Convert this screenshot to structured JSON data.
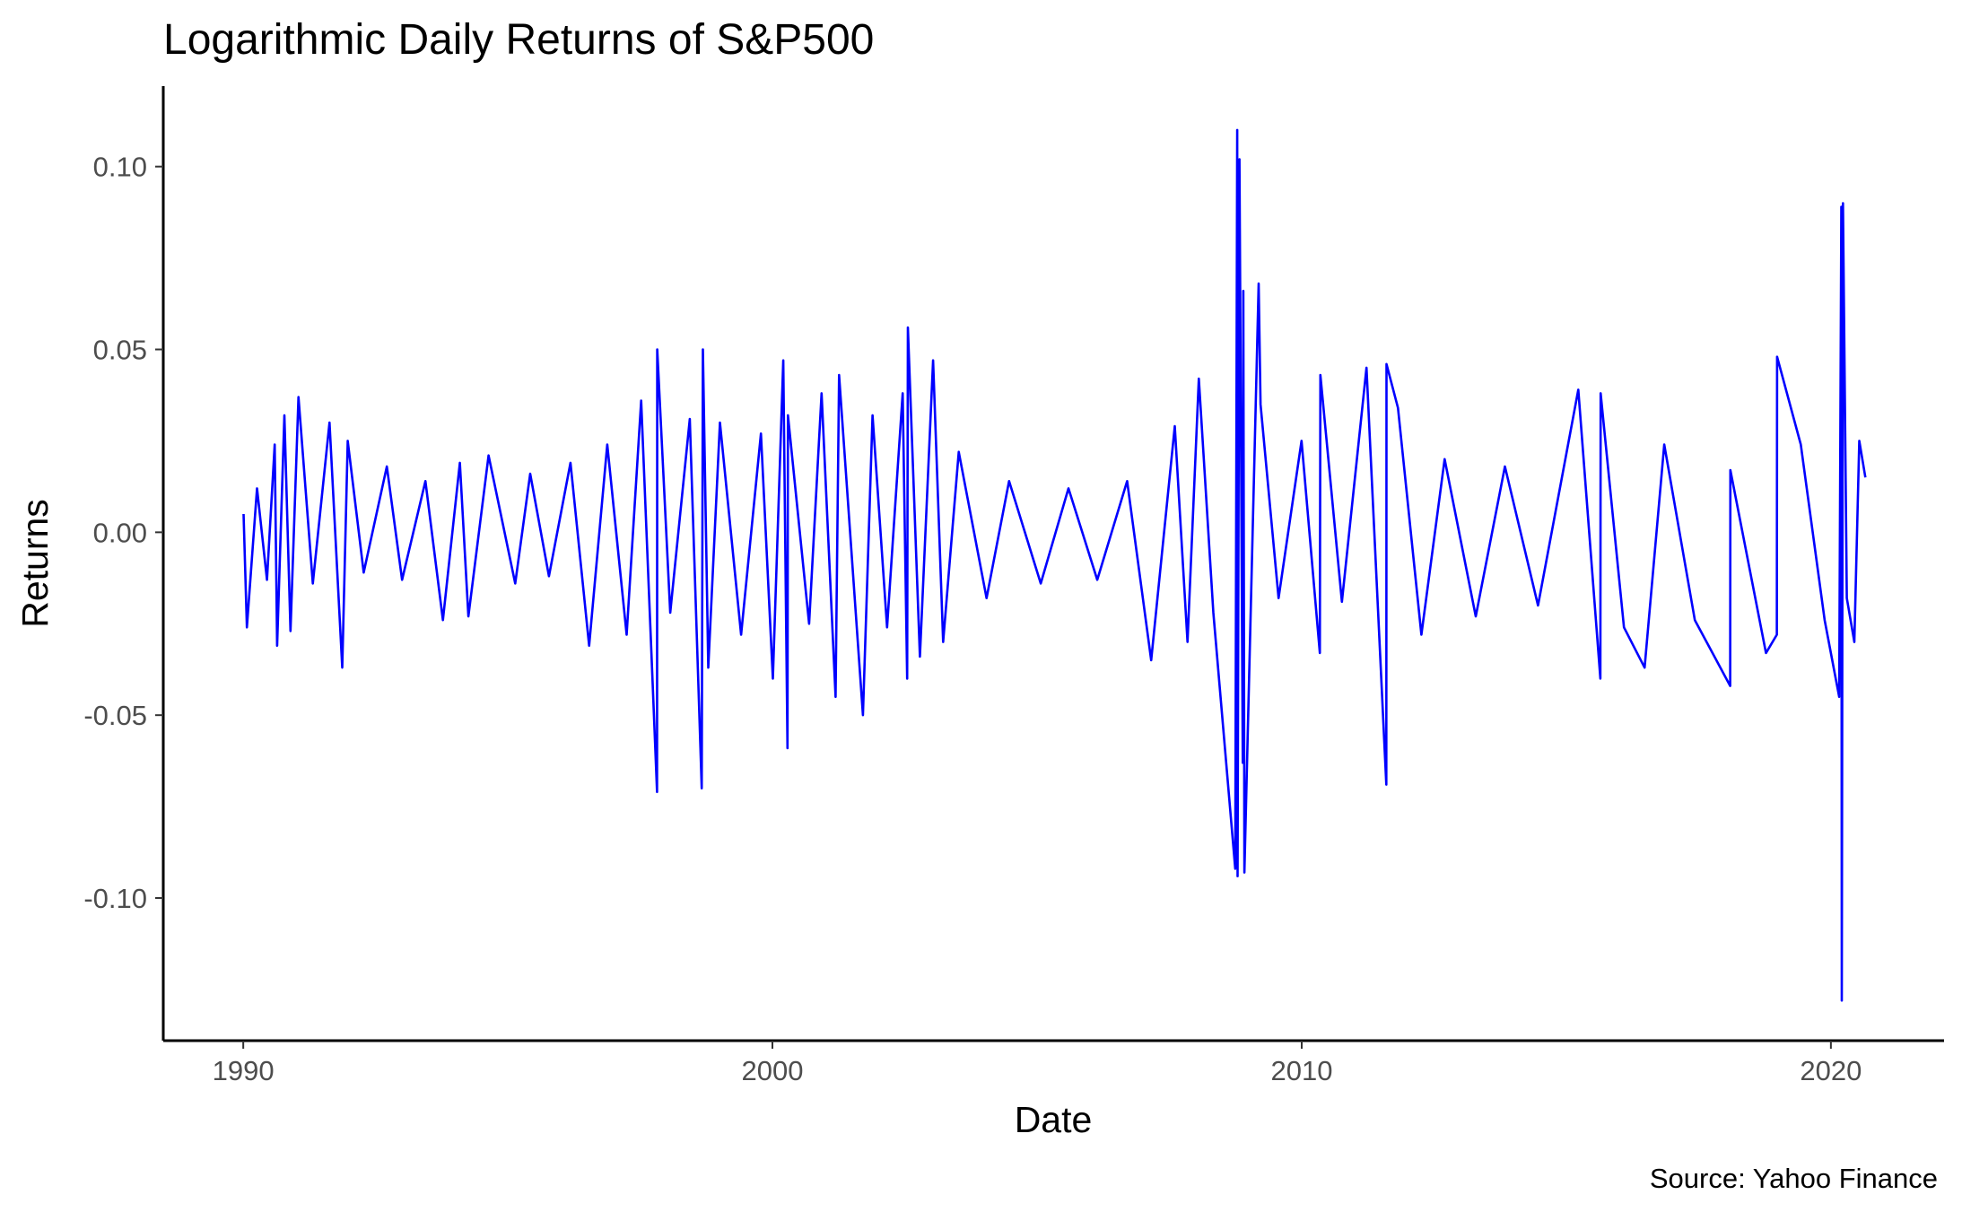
{
  "chart_data": {
    "type": "line",
    "title": "Logarithmic Daily Returns of S&P500",
    "xlabel": "Date",
    "ylabel": "Returns",
    "caption": "Source: Yahoo Finance",
    "x_axis_type": "date",
    "xlim": [
      "1988-06-28",
      "2022-02-20"
    ],
    "ylim": [
      -0.139,
      0.122
    ],
    "x_ticks": [
      {
        "value": "1990-01-01",
        "label": "1990"
      },
      {
        "value": "2000-01-01",
        "label": "2000"
      },
      {
        "value": "2010-01-01",
        "label": "2010"
      },
      {
        "value": "2020-01-01",
        "label": "2020"
      }
    ],
    "y_ticks": [
      {
        "value": 0.1,
        "label": "0.10"
      },
      {
        "value": 0.05,
        "label": "0.05"
      },
      {
        "value": 0.0,
        "label": "0.00"
      },
      {
        "value": -0.05,
        "label": "-0.05"
      },
      {
        "value": -0.1,
        "label": "-0.10"
      }
    ],
    "grid": false,
    "legend": "none",
    "color": "#0000ff",
    "series": [
      {
        "x": [
          "1990-01-03",
          "1990-01-26",
          "1990-04-06",
          "1990-06-14",
          "1990-08-06",
          "1990-08-23",
          "1990-10-12",
          "1990-11-23",
          "1991-01-17",
          "1991-04-26",
          "1991-08-19",
          "1991-11-15",
          "1991-12-23",
          "1992-04-11",
          "1992-09-18",
          "1993-01-01",
          "1993-06-11",
          "1993-10-10",
          "1994-02-04",
          "1994-04-04",
          "1994-08-21",
          "1995-02-21",
          "1995-06-04",
          "1995-10-12",
          "1996-03-08",
          "1996-07-15",
          "1996-11-17",
          "1997-03-31",
          "1997-07-09",
          "1997-10-27",
          "1997-10-28",
          "1998-01-26",
          "1998-06-10",
          "1998-08-31",
          "1998-09-08",
          "1998-10-15",
          "1999-01-04",
          "1999-05-30",
          "1999-10-14",
          "2000-01-04",
          "2000-03-16",
          "2000-04-14",
          "2000-04-17",
          "2000-09-10",
          "2000-12-05",
          "2001-03-12",
          "2001-04-05",
          "2001-09-17",
          "2001-11-22",
          "2002-03-02",
          "2002-06-18",
          "2002-07-19",
          "2002-07-24",
          "2002-10-15",
          "2003-01-14",
          "2003-03-24",
          "2003-07-10",
          "2004-01-18",
          "2004-06-21",
          "2005-01-26",
          "2005-08-05",
          "2006-02-20",
          "2006-09-14",
          "2007-02-27",
          "2007-08-09",
          "2007-11-05",
          "2008-01-22",
          "2008-05-01",
          "2008-09-29",
          "2008-10-13",
          "2008-10-15",
          "2008-10-28",
          "2008-11-20",
          "2008-11-24",
          "2008-12-01",
          "2009-03-10",
          "2009-03-23",
          "2009-07-25",
          "2009-12-31",
          "2010-05-06",
          "2010-05-10",
          "2010-10-05",
          "2011-03-24",
          "2011-08-08",
          "2011-08-09",
          "2011-10-27",
          "2012-04-06",
          "2012-09-13",
          "2013-04-16",
          "2013-11-03",
          "2014-06-20",
          "2015-03-25",
          "2015-08-24",
          "2015-08-26",
          "2016-02-03",
          "2016-06-24",
          "2016-11-07",
          "2017-06-06",
          "2018-02-05",
          "2018-02-06",
          "2018-10-10",
          "2018-12-24",
          "2018-12-26",
          "2019-06-07",
          "2019-11-19",
          "2020-02-27",
          "2020-03-13",
          "2020-03-16",
          "2020-03-24",
          "2020-04-20",
          "2020-06-11",
          "2020-07-15",
          "2020-08-26"
        ],
        "values": [
          0.005,
          -0.026,
          0.012,
          -0.013,
          0.024,
          -0.031,
          0.032,
          -0.027,
          0.037,
          -0.014,
          0.03,
          -0.037,
          0.025,
          -0.011,
          0.018,
          -0.013,
          0.014,
          -0.024,
          0.019,
          -0.023,
          0.021,
          -0.014,
          0.016,
          -0.012,
          0.019,
          -0.031,
          0.024,
          -0.028,
          0.036,
          -0.071,
          0.05,
          -0.022,
          0.031,
          -0.07,
          0.05,
          -0.037,
          0.03,
          -0.028,
          0.027,
          -0.04,
          0.047,
          -0.059,
          0.032,
          -0.025,
          0.038,
          -0.045,
          0.043,
          -0.05,
          0.032,
          -0.026,
          0.038,
          -0.04,
          0.056,
          -0.034,
          0.047,
          -0.03,
          0.022,
          -0.018,
          0.014,
          -0.014,
          0.012,
          -0.013,
          0.014,
          -0.035,
          0.029,
          -0.03,
          0.042,
          -0.022,
          -0.092,
          0.11,
          -0.094,
          0.102,
          -0.063,
          0.066,
          -0.093,
          0.068,
          0.035,
          -0.018,
          0.025,
          -0.033,
          0.043,
          -0.019,
          0.045,
          -0.069,
          0.046,
          0.034,
          -0.028,
          0.02,
          -0.023,
          0.018,
          -0.02,
          0.039,
          -0.04,
          0.038,
          -0.026,
          -0.037,
          0.024,
          -0.024,
          -0.042,
          0.017,
          -0.033,
          -0.028,
          0.048,
          0.024,
          -0.024,
          -0.045,
          0.089,
          -0.128,
          0.09,
          -0.018,
          -0.03,
          0.025,
          0.015
        ]
      }
    ]
  }
}
